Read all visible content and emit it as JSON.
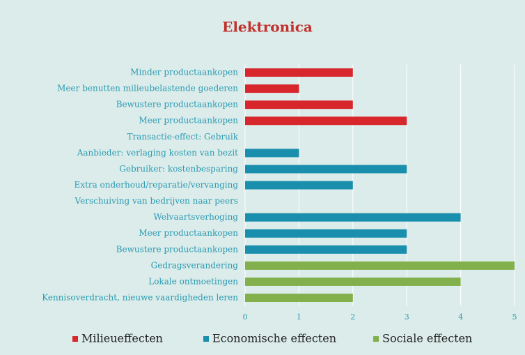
{
  "chart_data": {
    "type": "bar",
    "orientation": "horizontal",
    "title": "Elektronica",
    "categories": [
      "Minder productaankopen",
      "Meer benutten milieubelastende goederen",
      "Bewustere productaankopen",
      "Meer productaankopen",
      "Transactie-effect: Gebruik",
      "Aanbieder: verlaging kosten van bezit",
      "Gebruiker: kostenbesparing",
      "Extra onderhoud/reparatie/vervanging",
      "Verschuiving van bedrijven naar peers",
      "Welvaartsverhoging",
      "Meer productaankopen",
      "Bewustere productaankopen",
      "Gedragsverandering",
      "Lokale ontmoetingen",
      "Kennisoverdracht, nieuwe vaardigheden leren"
    ],
    "series": [
      {
        "name": "Milieueffecten",
        "color": "#d7262c",
        "values": [
          2,
          1,
          2,
          3,
          null,
          null,
          null,
          null,
          null,
          null,
          null,
          null,
          null,
          null,
          null
        ]
      },
      {
        "name": "Economische effecten",
        "color": "#1a8fad",
        "values": [
          null,
          null,
          null,
          null,
          null,
          1,
          3,
          2,
          null,
          4,
          3,
          3,
          null,
          null,
          null
        ]
      },
      {
        "name": "Sociale effecten",
        "color": "#82b04c",
        "values": [
          null,
          null,
          null,
          null,
          null,
          null,
          null,
          null,
          null,
          null,
          null,
          null,
          5,
          4,
          2
        ]
      }
    ],
    "xlim": [
      0,
      5
    ],
    "xticks": [
      0,
      1,
      2,
      3,
      4,
      5
    ],
    "grid": true,
    "legend": "bottom"
  }
}
